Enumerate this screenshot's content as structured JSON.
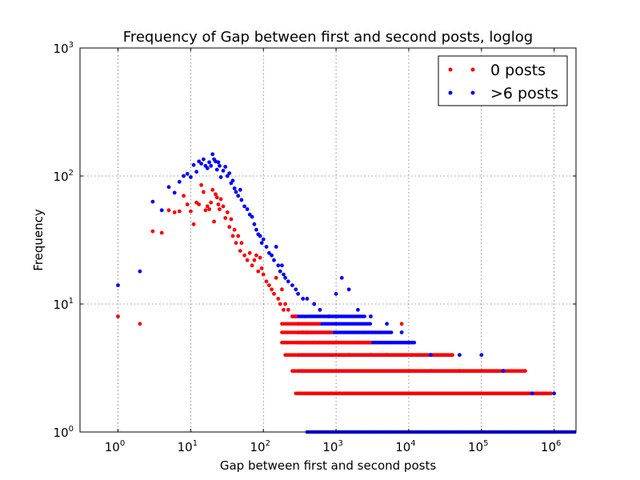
{
  "chart_data": {
    "type": "scatter",
    "title": "Frequency of Gap between first and second posts, loglog",
    "xlabel": "Gap between first and second posts",
    "ylabel": "Frequency",
    "xscale": "log",
    "yscale": "log",
    "xlim": [
      0.3,
      2000000
    ],
    "ylim": [
      1,
      1000
    ],
    "grid": true,
    "legend_position": "top-right",
    "xticks": [
      {
        "base": "10",
        "exp": "0",
        "value": 1
      },
      {
        "base": "10",
        "exp": "1",
        "value": 10
      },
      {
        "base": "10",
        "exp": "2",
        "value": 100
      },
      {
        "base": "10",
        "exp": "3",
        "value": 1000
      },
      {
        "base": "10",
        "exp": "4",
        "value": 10000
      },
      {
        "base": "10",
        "exp": "5",
        "value": 100000
      },
      {
        "base": "10",
        "exp": "6",
        "value": 1000000
      }
    ],
    "yticks": [
      {
        "base": "10",
        "exp": "0",
        "value": 1
      },
      {
        "base": "10",
        "exp": "1",
        "value": 10
      },
      {
        "base": "10",
        "exp": "2",
        "value": 100
      },
      {
        "base": "10",
        "exp": "3",
        "value": 1000
      }
    ],
    "series": [
      {
        "name": "0 posts",
        "color": "#ff0000",
        "points": [
          [
            1,
            8
          ],
          [
            2,
            7
          ],
          [
            3,
            37
          ],
          [
            4,
            36
          ],
          [
            5,
            54
          ],
          [
            6,
            52
          ],
          [
            7,
            53
          ],
          [
            8,
            70
          ],
          [
            9,
            60
          ],
          [
            10,
            53
          ],
          [
            11,
            42
          ],
          [
            12,
            62
          ],
          [
            13,
            60
          ],
          [
            14,
            85
          ],
          [
            15,
            75
          ],
          [
            16,
            54
          ],
          [
            17,
            58
          ],
          [
            18,
            55
          ],
          [
            19,
            62
          ],
          [
            20,
            78
          ],
          [
            21,
            44
          ],
          [
            22,
            72
          ],
          [
            23,
            68
          ],
          [
            24,
            60
          ],
          [
            25,
            55
          ],
          [
            26,
            66
          ],
          [
            28,
            58
          ],
          [
            30,
            47
          ],
          [
            32,
            52
          ],
          [
            34,
            40
          ],
          [
            36,
            46
          ],
          [
            38,
            34
          ],
          [
            40,
            38
          ],
          [
            42,
            30
          ],
          [
            45,
            34
          ],
          [
            48,
            26
          ],
          [
            50,
            30
          ],
          [
            55,
            24
          ],
          [
            60,
            22
          ],
          [
            65,
            25
          ],
          [
            70,
            20
          ],
          [
            75,
            22
          ],
          [
            80,
            24
          ],
          [
            85,
            18
          ],
          [
            90,
            23
          ],
          [
            95,
            19
          ],
          [
            100,
            17
          ],
          [
            110,
            15
          ],
          [
            120,
            14
          ],
          [
            130,
            13
          ],
          [
            140,
            12
          ],
          [
            150,
            16
          ],
          [
            160,
            11
          ],
          [
            170,
            10
          ],
          [
            180,
            13
          ],
          [
            190,
            9
          ],
          [
            200,
            10
          ],
          [
            220,
            9
          ],
          [
            250,
            8
          ],
          [
            280,
            8
          ],
          [
            300,
            7
          ],
          [
            350,
            6
          ],
          [
            400,
            6
          ],
          [
            500,
            5
          ],
          [
            600,
            5
          ],
          [
            800,
            5
          ],
          [
            1000,
            4
          ],
          [
            1500,
            4
          ],
          [
            2000,
            5
          ],
          [
            3000,
            4
          ],
          [
            5000,
            4
          ],
          [
            8000,
            7
          ],
          [
            10000,
            5
          ],
          [
            20000,
            3
          ],
          [
            50000,
            3
          ],
          [
            100000,
            3
          ],
          [
            200000,
            3
          ],
          [
            400000,
            3
          ],
          [
            600000,
            2
          ],
          [
            900000,
            2
          ]
        ]
      },
      {
        "name": ">6 posts",
        "color": "#0000ff",
        "points": [
          [
            1,
            14
          ],
          [
            2,
            18
          ],
          [
            3,
            63
          ],
          [
            4,
            54
          ],
          [
            5,
            82
          ],
          [
            6,
            74
          ],
          [
            7,
            90
          ],
          [
            8,
            100
          ],
          [
            9,
            104
          ],
          [
            10,
            98
          ],
          [
            11,
            122
          ],
          [
            12,
            108
          ],
          [
            13,
            130
          ],
          [
            14,
            125
          ],
          [
            15,
            135
          ],
          [
            16,
            120
          ],
          [
            17,
            115
          ],
          [
            18,
            128
          ],
          [
            19,
            120
          ],
          [
            20,
            148
          ],
          [
            21,
            135
          ],
          [
            22,
            130
          ],
          [
            23,
            112
          ],
          [
            24,
            128
          ],
          [
            25,
            120
          ],
          [
            26,
            98
          ],
          [
            28,
            110
          ],
          [
            30,
            118
          ],
          [
            32,
            100
          ],
          [
            34,
            105
          ],
          [
            36,
            88
          ],
          [
            38,
            92
          ],
          [
            40,
            80
          ],
          [
            42,
            75
          ],
          [
            45,
            70
          ],
          [
            48,
            78
          ],
          [
            50,
            65
          ],
          [
            55,
            58
          ],
          [
            60,
            55
          ],
          [
            65,
            50
          ],
          [
            70,
            48
          ],
          [
            75,
            42
          ],
          [
            80,
            38
          ],
          [
            85,
            35
          ],
          [
            90,
            34
          ],
          [
            95,
            30
          ],
          [
            100,
            32
          ],
          [
            110,
            28
          ],
          [
            120,
            25
          ],
          [
            130,
            24
          ],
          [
            140,
            22
          ],
          [
            150,
            28
          ],
          [
            160,
            20
          ],
          [
            170,
            18
          ],
          [
            180,
            20
          ],
          [
            190,
            17
          ],
          [
            200,
            16
          ],
          [
            220,
            15
          ],
          [
            250,
            14
          ],
          [
            280,
            13
          ],
          [
            300,
            12
          ],
          [
            350,
            11
          ],
          [
            400,
            11
          ],
          [
            500,
            10
          ],
          [
            600,
            9
          ],
          [
            800,
            8
          ],
          [
            1000,
            12
          ],
          [
            1200,
            16
          ],
          [
            1500,
            13
          ],
          [
            2000,
            9
          ],
          [
            3000,
            8
          ],
          [
            5000,
            7
          ],
          [
            8000,
            6
          ],
          [
            10000,
            5
          ],
          [
            20000,
            4
          ],
          [
            50000,
            4
          ],
          [
            100000,
            4
          ],
          [
            200000,
            3
          ],
          [
            500000,
            2
          ],
          [
            1000000,
            2
          ]
        ]
      }
    ],
    "dense_rows": [
      {
        "series": 1,
        "y": 1,
        "x_from": 400,
        "x_to": 2000000
      },
      {
        "series": 1,
        "y": 2,
        "x_from": 300,
        "x_to": 800000
      },
      {
        "series": 1,
        "y": 3,
        "x_from": 300,
        "x_to": 200000
      },
      {
        "series": 1,
        "y": 4,
        "x_from": 300,
        "x_to": 40000
      },
      {
        "series": 1,
        "y": 5,
        "x_from": 300,
        "x_to": 12000
      },
      {
        "series": 1,
        "y": 6,
        "x_from": 300,
        "x_to": 6000
      },
      {
        "series": 1,
        "y": 7,
        "x_from": 300,
        "x_to": 3000
      },
      {
        "series": 1,
        "y": 8,
        "x_from": 250,
        "x_to": 2500
      },
      {
        "series": 0,
        "y": 2,
        "x_from": 280,
        "x_to": 900000
      },
      {
        "series": 0,
        "y": 3,
        "x_from": 250,
        "x_to": 400000
      },
      {
        "series": 0,
        "y": 4,
        "x_from": 200,
        "x_to": 40000
      },
      {
        "series": 0,
        "y": 5,
        "x_from": 180,
        "x_to": 3000
      },
      {
        "series": 0,
        "y": 6,
        "x_from": 180,
        "x_to": 900
      },
      {
        "series": 0,
        "y": 7,
        "x_from": 180,
        "x_to": 600
      }
    ]
  }
}
